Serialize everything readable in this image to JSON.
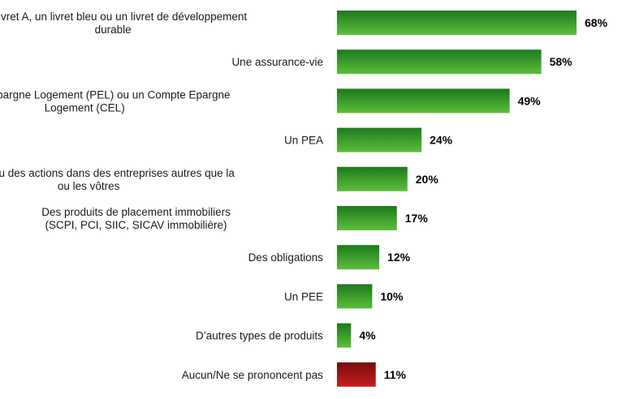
{
  "chart_data": {
    "type": "bar",
    "orientation": "horizontal",
    "categories": [
      "Un livret A, un livret bleu ou un livret de développement durable",
      "Une assurance-vie",
      "Un Plan d’Epargne Logement (PEL) ou un Compte Epargne Logement (CEL)",
      "Un PEA",
      "Des parts ou des actions dans des entreprises autres que la ou les vôtres",
      "Des produits de placement immobiliers (SCPI, PCI, SIIC, SICAV immobilière)",
      "Des obligations",
      "Un PEE",
      "D’autres types de produits",
      "Aucun/Ne se prononcent pas"
    ],
    "category_lines": [
      [
        "Un livret A, un livret bleu ou un livret de développement",
        "durable"
      ],
      [
        "Une assurance-vie"
      ],
      [
        "Un Plan d’Epargne Logement (PEL) ou un Compte Epargne",
        "Logement (CEL)"
      ],
      [
        "Un PEA"
      ],
      [
        "Des parts ou des actions dans des entreprises autres que la",
        "ou les vôtres"
      ],
      [
        "Des produits de placement immobiliers",
        "(SCPI, PCI, SIIC, SICAV immobilière)"
      ],
      [
        "Des obligations"
      ],
      [
        "Un PEE"
      ],
      [
        "D’autres types de produits"
      ],
      [
        "Aucun/Ne se prononcent pas"
      ]
    ],
    "values": [
      68,
      58,
      49,
      24,
      20,
      17,
      12,
      10,
      4,
      11
    ],
    "value_labels": [
      "68%",
      "58%",
      "49%",
      "24%",
      "20%",
      "17%",
      "12%",
      "10%",
      "4%",
      "11%"
    ],
    "bar_colors": [
      "green",
      "green",
      "green",
      "green",
      "green",
      "green",
      "green",
      "green",
      "green",
      "red"
    ],
    "title": "",
    "xlabel": "",
    "ylabel": "",
    "xlim": [
      0,
      68
    ],
    "grid": false,
    "legend": "none"
  },
  "colors": {
    "green_top": "#1d7a1d",
    "green_bottom": "#5cbf3a",
    "red_top": "#7a0b0b",
    "red_bottom": "#c42020"
  }
}
